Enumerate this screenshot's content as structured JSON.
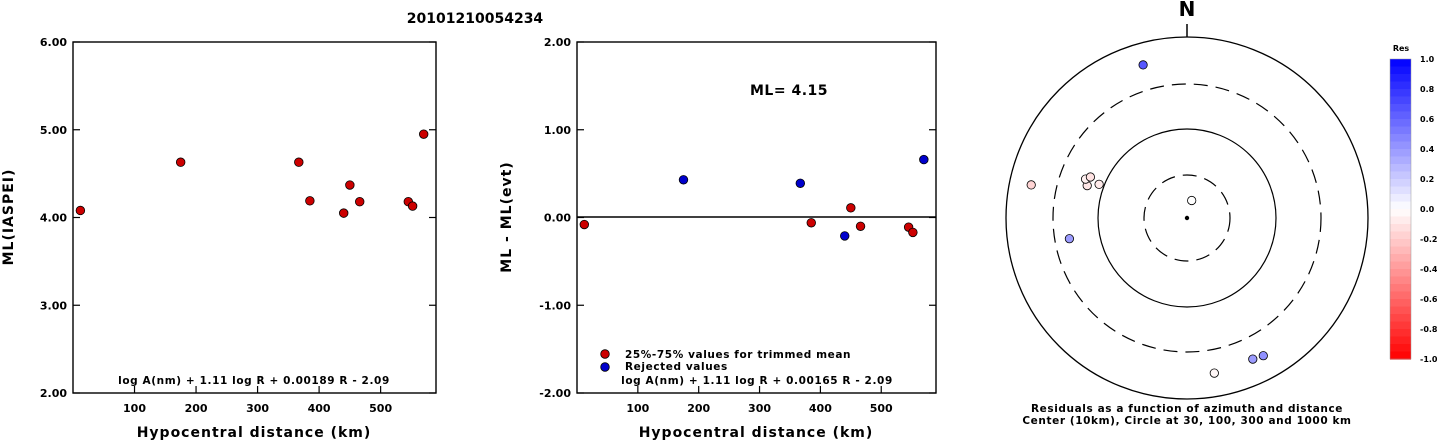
{
  "title": "20101210054234",
  "chart_data": [
    {
      "type": "scatter",
      "xlabel": "Hypocentral distance (km)",
      "ylabel": "ML(IASPEI)",
      "xlim": [
        0,
        590
      ],
      "ylim": [
        2.0,
        6.0
      ],
      "x_ticks": [
        "100",
        "200",
        "300",
        "400",
        "500"
      ],
      "y_ticks": [
        "2.00",
        "3.00",
        "4.00",
        "5.00",
        "6.00"
      ],
      "formula": "log A(nm) + 1.11 log R + 0.00189 R - 2.09",
      "series": [
        {
          "color": "#cc0000",
          "points": [
            [
              12,
              4.08
            ],
            [
              175,
              4.63
            ],
            [
              367,
              4.63
            ],
            [
              385,
              4.19
            ],
            [
              440,
              4.05
            ],
            [
              450,
              4.37
            ],
            [
              466,
              4.18
            ],
            [
              545,
              4.18
            ],
            [
              552,
              4.13
            ],
            [
              570,
              4.95
            ]
          ]
        }
      ]
    },
    {
      "type": "scatter",
      "xlabel": "Hypocentral distance (km)",
      "ylabel": "ML - ML(evt)",
      "xlim": [
        0,
        590
      ],
      "ylim": [
        -2.0,
        2.0
      ],
      "x_ticks": [
        "100",
        "200",
        "300",
        "400",
        "500"
      ],
      "y_ticks": [
        "-2.00",
        "-1.00",
        "0.00",
        "1.00",
        "2.00"
      ],
      "annotation": "ML= 4.15",
      "formula": "log A(nm) + 1.11 log R + 0.00165 R - 2.09",
      "legend": [
        "25%-75% values for trimmed mean",
        "Rejected values"
      ],
      "series": [
        {
          "name": "25%-75% values for trimmed mean",
          "color": "#cc0000",
          "points": [
            [
              12,
              -0.08
            ],
            [
              385,
              -0.06
            ],
            [
              450,
              0.11
            ],
            [
              466,
              -0.1
            ],
            [
              545,
              -0.11
            ],
            [
              552,
              -0.17
            ]
          ]
        },
        {
          "name": "Rejected values",
          "color": "#0000cc",
          "points": [
            [
              175,
              0.43
            ],
            [
              367,
              0.39
            ],
            [
              440,
              -0.21
            ],
            [
              570,
              0.66
            ]
          ]
        }
      ]
    }
  ],
  "polar": {
    "north_label": "N",
    "caption_line1": "Residuals as a function of azimuth and distance",
    "caption_line2": "Center (10km), Circle at 30, 100, 300 and 1000 km",
    "colorbar_title": "Res",
    "colorbar_ticks": [
      "1.0",
      "0.8",
      "0.6",
      "0.4",
      "0.2",
      "0.0",
      "-0.2",
      "-0.4",
      "-0.6",
      "-0.8",
      "-1.0"
    ],
    "stations": [
      {
        "az": 15,
        "r": 0.1,
        "res": 0.0
      },
      {
        "az": 344,
        "r": 0.88,
        "res": 0.66
      },
      {
        "az": 291,
        "r": 0.52,
        "res": -0.08
      },
      {
        "az": 288,
        "r": 0.58,
        "res": -0.1
      },
      {
        "az": 291,
        "r": 0.6,
        "res": -0.06
      },
      {
        "az": 293,
        "r": 0.58,
        "res": -0.11
      },
      {
        "az": 282,
        "r": 0.88,
        "res": -0.17
      },
      {
        "az": 260,
        "r": 0.66,
        "res": 0.39
      },
      {
        "az": 151,
        "r": 0.87,
        "res": 0.43
      },
      {
        "az": 155,
        "r": 0.86,
        "res": 0.39
      },
      {
        "az": 170,
        "r": 0.87,
        "res": -0.03
      }
    ]
  }
}
